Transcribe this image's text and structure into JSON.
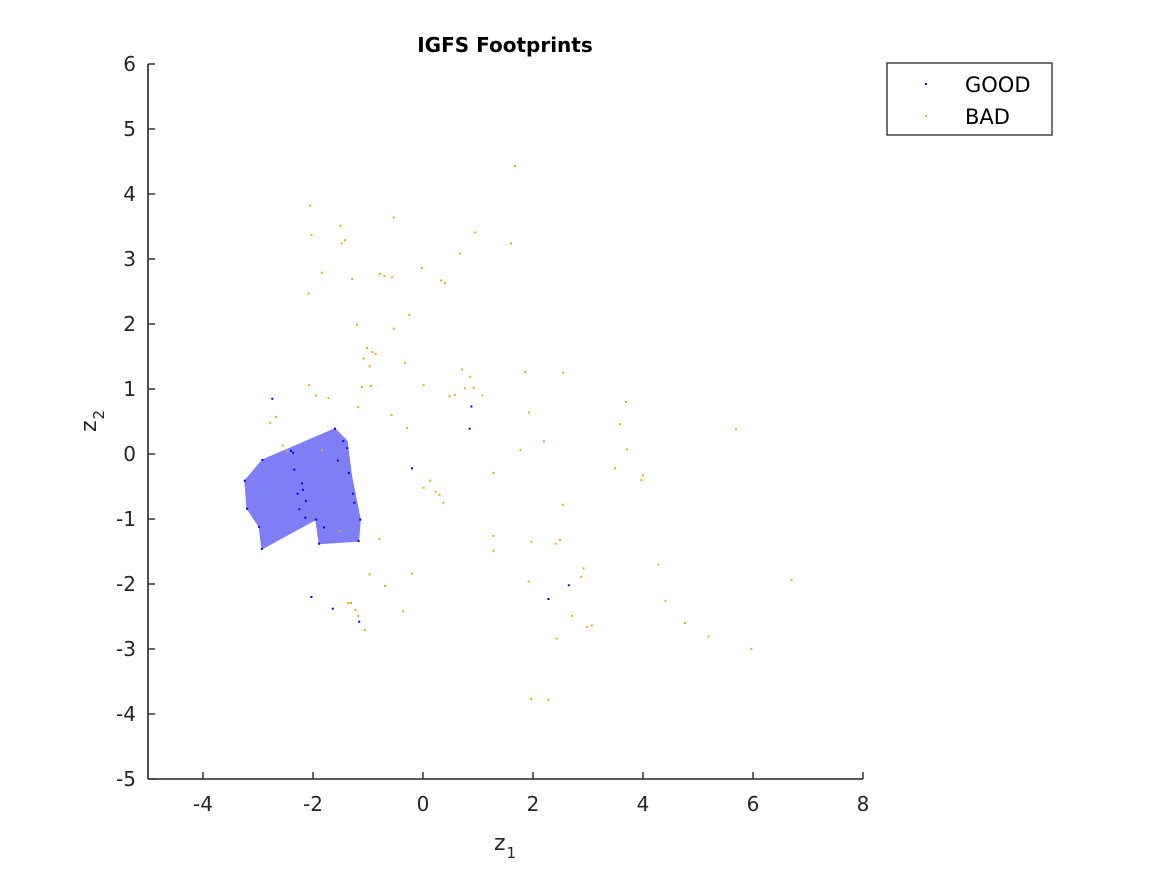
{
  "chart_data": {
    "type": "scatter",
    "title": "IGFS Footprints",
    "xlabel": {
      "base": "z",
      "sub": "1"
    },
    "ylabel": {
      "base": "z",
      "sub": "2"
    },
    "xlim": [
      -5,
      8
    ],
    "ylim": [
      -5,
      6
    ],
    "xticks": [
      -4,
      -2,
      0,
      2,
      4,
      6,
      8
    ],
    "yticks": [
      -5,
      -4,
      -3,
      -2,
      -1,
      0,
      1,
      2,
      3,
      4,
      5,
      6
    ],
    "xtick_labels": [
      "-4",
      "-2",
      "0",
      "2",
      "4",
      "6",
      "8"
    ],
    "ytick_labels": [
      "-5",
      "-4",
      "-3",
      "-2",
      "-1",
      "0",
      "1",
      "2",
      "3",
      "4",
      "5",
      "6"
    ],
    "grid": false,
    "legend_position": "top-right (outside)",
    "footprint": {
      "color": "#7f7ff5",
      "polygon": [
        [
          -3.24,
          -0.41
        ],
        [
          -3.2,
          -0.84
        ],
        [
          -2.98,
          -1.12
        ],
        [
          -2.93,
          -1.46
        ],
        [
          -1.95,
          -1.01
        ],
        [
          -1.89,
          -1.38
        ],
        [
          -1.17,
          -1.34
        ],
        [
          -1.14,
          -1.01
        ],
        [
          -1.3,
          -0.33
        ],
        [
          -1.38,
          0.2
        ],
        [
          -1.6,
          0.39
        ],
        [
          -2.92,
          -0.09
        ]
      ]
    },
    "series": [
      {
        "name": "GOOD",
        "color": "#0000ff",
        "points": [
          [
            -3.24,
            -0.41
          ],
          [
            -3.2,
            -0.84
          ],
          [
            -2.98,
            -1.12
          ],
          [
            -2.93,
            -1.46
          ],
          [
            -2.92,
            -0.09
          ],
          [
            -2.74,
            0.85
          ],
          [
            -2.4,
            0.05
          ],
          [
            -2.36,
            0.02
          ],
          [
            -2.34,
            -0.24
          ],
          [
            -2.28,
            -0.61
          ],
          [
            -2.25,
            -0.85
          ],
          [
            -2.2,
            -0.45
          ],
          [
            -2.18,
            -0.55
          ],
          [
            -2.14,
            -0.98
          ],
          [
            -2.13,
            -0.72
          ],
          [
            -2.03,
            -2.2
          ],
          [
            -1.95,
            -1.01
          ],
          [
            -1.89,
            -1.38
          ],
          [
            -1.8,
            -1.13
          ],
          [
            -1.64,
            -2.38
          ],
          [
            -1.6,
            0.39
          ],
          [
            -1.55,
            -0.1
          ],
          [
            -1.45,
            0.2
          ],
          [
            -1.38,
            0.09
          ],
          [
            -1.35,
            -0.29
          ],
          [
            -1.27,
            -0.61
          ],
          [
            -1.25,
            -0.75
          ],
          [
            -1.17,
            -1.34
          ],
          [
            -1.14,
            -1.01
          ],
          [
            -1.16,
            -2.58
          ],
          [
            -0.2,
            -0.22
          ],
          [
            0.85,
            0.39
          ],
          [
            0.88,
            0.73
          ],
          [
            2.28,
            -2.23
          ],
          [
            2.65,
            -2.02
          ]
        ]
      },
      {
        "name": "BAD",
        "color": "#ffa500",
        "points": [
          [
            -2.05,
            3.82
          ],
          [
            -2.03,
            3.37
          ],
          [
            -2.08,
            2.47
          ],
          [
            -2.07,
            1.06
          ],
          [
            -1.95,
            0.9
          ],
          [
            -2.67,
            0.57
          ],
          [
            -2.78,
            0.48
          ],
          [
            -2.55,
            0.13
          ],
          [
            -2.46,
            0.04
          ],
          [
            -1.84,
            2.79
          ],
          [
            -1.5,
            3.51
          ],
          [
            -1.48,
            3.24
          ],
          [
            -1.42,
            3.29
          ],
          [
            -1.29,
            2.69
          ],
          [
            -1.2,
            1.99
          ],
          [
            -1.08,
            1.47
          ],
          [
            -1.02,
            1.63
          ],
          [
            -0.97,
            1.35
          ],
          [
            -0.92,
            1.57
          ],
          [
            -0.86,
            1.54
          ],
          [
            -0.95,
            1.05
          ],
          [
            -1.11,
            1.03
          ],
          [
            -1.18,
            0.72
          ],
          [
            -0.78,
            2.77
          ],
          [
            -0.7,
            2.74
          ],
          [
            -0.56,
            2.72
          ],
          [
            -0.53,
            3.64
          ],
          [
            -0.53,
            1.93
          ],
          [
            -0.33,
            1.4
          ],
          [
            -0.29,
            0.4
          ],
          [
            -0.57,
            0.6
          ],
          [
            -0.25,
            2.14
          ],
          [
            -1.5,
            -1.19
          ],
          [
            -0.79,
            -1.31
          ],
          [
            -0.97,
            -1.85
          ],
          [
            -0.69,
            -2.03
          ],
          [
            -0.36,
            -2.42
          ],
          [
            -0.2,
            -1.84
          ],
          [
            -1.36,
            -2.29
          ],
          [
            -1.31,
            -2.29
          ],
          [
            -1.23,
            -2.4
          ],
          [
            -1.18,
            -2.49
          ],
          [
            -1.06,
            -2.71
          ],
          [
            -1.72,
            0.86
          ],
          [
            -1.84,
            0.06
          ],
          [
            -0.02,
            2.86
          ],
          [
            0.13,
            -0.41
          ],
          [
            0.23,
            -0.58
          ],
          [
            0.3,
            -0.63
          ],
          [
            0.37,
            -0.75
          ],
          [
            0.33,
            2.67
          ],
          [
            0.4,
            2.63
          ],
          [
            0.48,
            0.89
          ],
          [
            0.67,
            3.08
          ],
          [
            0.71,
            1.3
          ],
          [
            0.76,
            1.01
          ],
          [
            0.86,
            1.19
          ],
          [
            0.92,
            1.02
          ],
          [
            0.95,
            3.41
          ],
          [
            1.08,
            0.9
          ],
          [
            0.58,
            0.91
          ],
          [
            1.28,
            -0.29
          ],
          [
            1.28,
            -1.26
          ],
          [
            1.28,
            -1.49
          ],
          [
            1.6,
            3.24
          ],
          [
            1.67,
            4.43
          ],
          [
            1.77,
            0.06
          ],
          [
            1.86,
            1.26
          ],
          [
            1.93,
            0.64
          ],
          [
            1.97,
            -1.35
          ],
          [
            1.92,
            -1.96
          ],
          [
            1.97,
            -3.77
          ],
          [
            2.2,
            0.19
          ],
          [
            2.28,
            -3.78
          ],
          [
            2.41,
            -1.38
          ],
          [
            2.43,
            -2.84
          ],
          [
            2.49,
            -1.32
          ],
          [
            2.55,
            1.25
          ],
          [
            2.54,
            -0.78
          ],
          [
            2.71,
            -2.49
          ],
          [
            2.88,
            -1.89
          ],
          [
            2.92,
            -1.76
          ],
          [
            2.98,
            -2.66
          ],
          [
            3.07,
            -2.64
          ],
          [
            3.49,
            -0.22
          ],
          [
            3.58,
            0.46
          ],
          [
            3.69,
            0.8
          ],
          [
            3.71,
            0.07
          ],
          [
            3.97,
            -0.4
          ],
          [
            4.0,
            -0.33
          ],
          [
            4.28,
            -1.7
          ],
          [
            4.41,
            -2.26
          ],
          [
            4.76,
            -2.6
          ],
          [
            5.19,
            -2.81
          ],
          [
            5.69,
            0.38
          ],
          [
            5.97,
            -3.0
          ],
          [
            6.7,
            -1.94
          ],
          [
            0.01,
            1.06
          ],
          [
            0.01,
            -0.52
          ]
        ]
      }
    ]
  }
}
